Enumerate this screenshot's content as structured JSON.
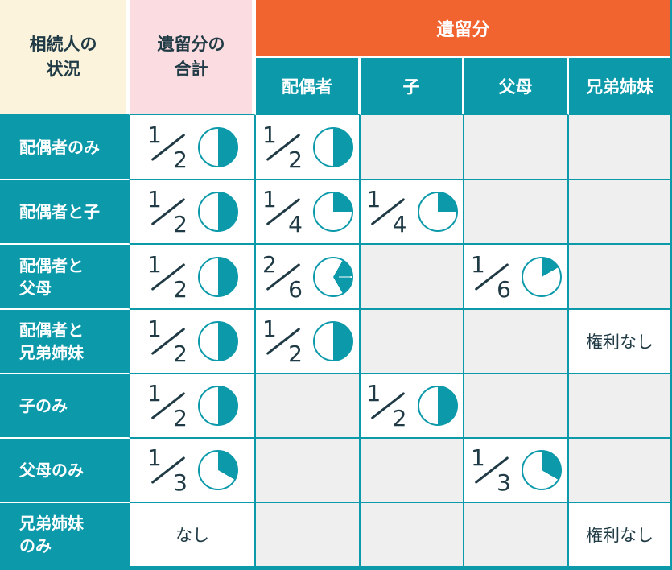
{
  "colors": {
    "teal": "#0C9AAB",
    "orange": "#F2642F",
    "cream": "#FBF3DC",
    "pink": "#FBDCE0",
    "empty_gray": "#EFEFEF",
    "text_dark": "#203B46",
    "white": "#FFFFFF"
  },
  "header": {
    "col1": "相続人の\n状況",
    "col2": "遺留分の\n合計",
    "group": "遺留分",
    "sub": [
      "配偶者",
      "子",
      "父母",
      "兄弟姉妹"
    ]
  },
  "columns_keys": [
    "total",
    "spouse",
    "child",
    "parents",
    "siblings"
  ],
  "rows": [
    {
      "key": "spouse-only",
      "label": "配偶者のみ",
      "cells": [
        {
          "type": "fraction",
          "num": "1",
          "den": "2",
          "pie_segments": [
            [
              0,
              180
            ]
          ]
        },
        {
          "type": "fraction",
          "num": "1",
          "den": "2",
          "pie_segments": [
            [
              0,
              180
            ]
          ]
        },
        null,
        null,
        null
      ]
    },
    {
      "key": "spouse-child",
      "label": "配偶者と子",
      "cells": [
        {
          "type": "fraction",
          "num": "1",
          "den": "2",
          "pie_segments": [
            [
              0,
              180
            ]
          ]
        },
        {
          "type": "fraction",
          "num": "1",
          "den": "4",
          "pie_segments": [
            [
              0,
              90
            ]
          ]
        },
        {
          "type": "fraction",
          "num": "1",
          "den": "4",
          "pie_segments": [
            [
              0,
              90
            ]
          ]
        },
        null,
        null
      ]
    },
    {
      "key": "spouse-parents",
      "label": "配偶者と\n父母",
      "cells": [
        {
          "type": "fraction",
          "num": "1",
          "den": "2",
          "pie_segments": [
            [
              0,
              180
            ]
          ]
        },
        {
          "type": "fraction",
          "num": "2",
          "den": "6",
          "pie_segments": [
            [
              30,
              88
            ],
            [
              92,
              150
            ]
          ]
        },
        null,
        {
          "type": "fraction",
          "num": "1",
          "den": "6",
          "pie_segments": [
            [
              0,
              60
            ]
          ]
        },
        null
      ]
    },
    {
      "key": "spouse-siblings",
      "label": "配偶者と\n兄弟姉妹",
      "cells": [
        {
          "type": "fraction",
          "num": "1",
          "den": "2",
          "pie_segments": [
            [
              0,
              180
            ]
          ]
        },
        {
          "type": "fraction",
          "num": "1",
          "den": "2",
          "pie_segments": [
            [
              0,
              180
            ]
          ]
        },
        null,
        null,
        {
          "type": "text",
          "text": "権利なし"
        }
      ]
    },
    {
      "key": "child-only",
      "label": "子のみ",
      "cells": [
        {
          "type": "fraction",
          "num": "1",
          "den": "2",
          "pie_segments": [
            [
              0,
              180
            ]
          ]
        },
        null,
        {
          "type": "fraction",
          "num": "1",
          "den": "2",
          "pie_segments": [
            [
              0,
              180
            ]
          ]
        },
        null,
        null
      ]
    },
    {
      "key": "parents-only",
      "label": "父母のみ",
      "cells": [
        {
          "type": "fraction",
          "num": "1",
          "den": "3",
          "pie_segments": [
            [
              0,
              120
            ]
          ]
        },
        null,
        null,
        {
          "type": "fraction",
          "num": "1",
          "den": "3",
          "pie_segments": [
            [
              0,
              120
            ]
          ]
        },
        null
      ]
    },
    {
      "key": "siblings-only",
      "label": "兄弟姉妹\nのみ",
      "cells": [
        {
          "type": "text",
          "text": "なし"
        },
        null,
        null,
        null,
        {
          "type": "text",
          "text": "権利なし"
        }
      ]
    }
  ]
}
